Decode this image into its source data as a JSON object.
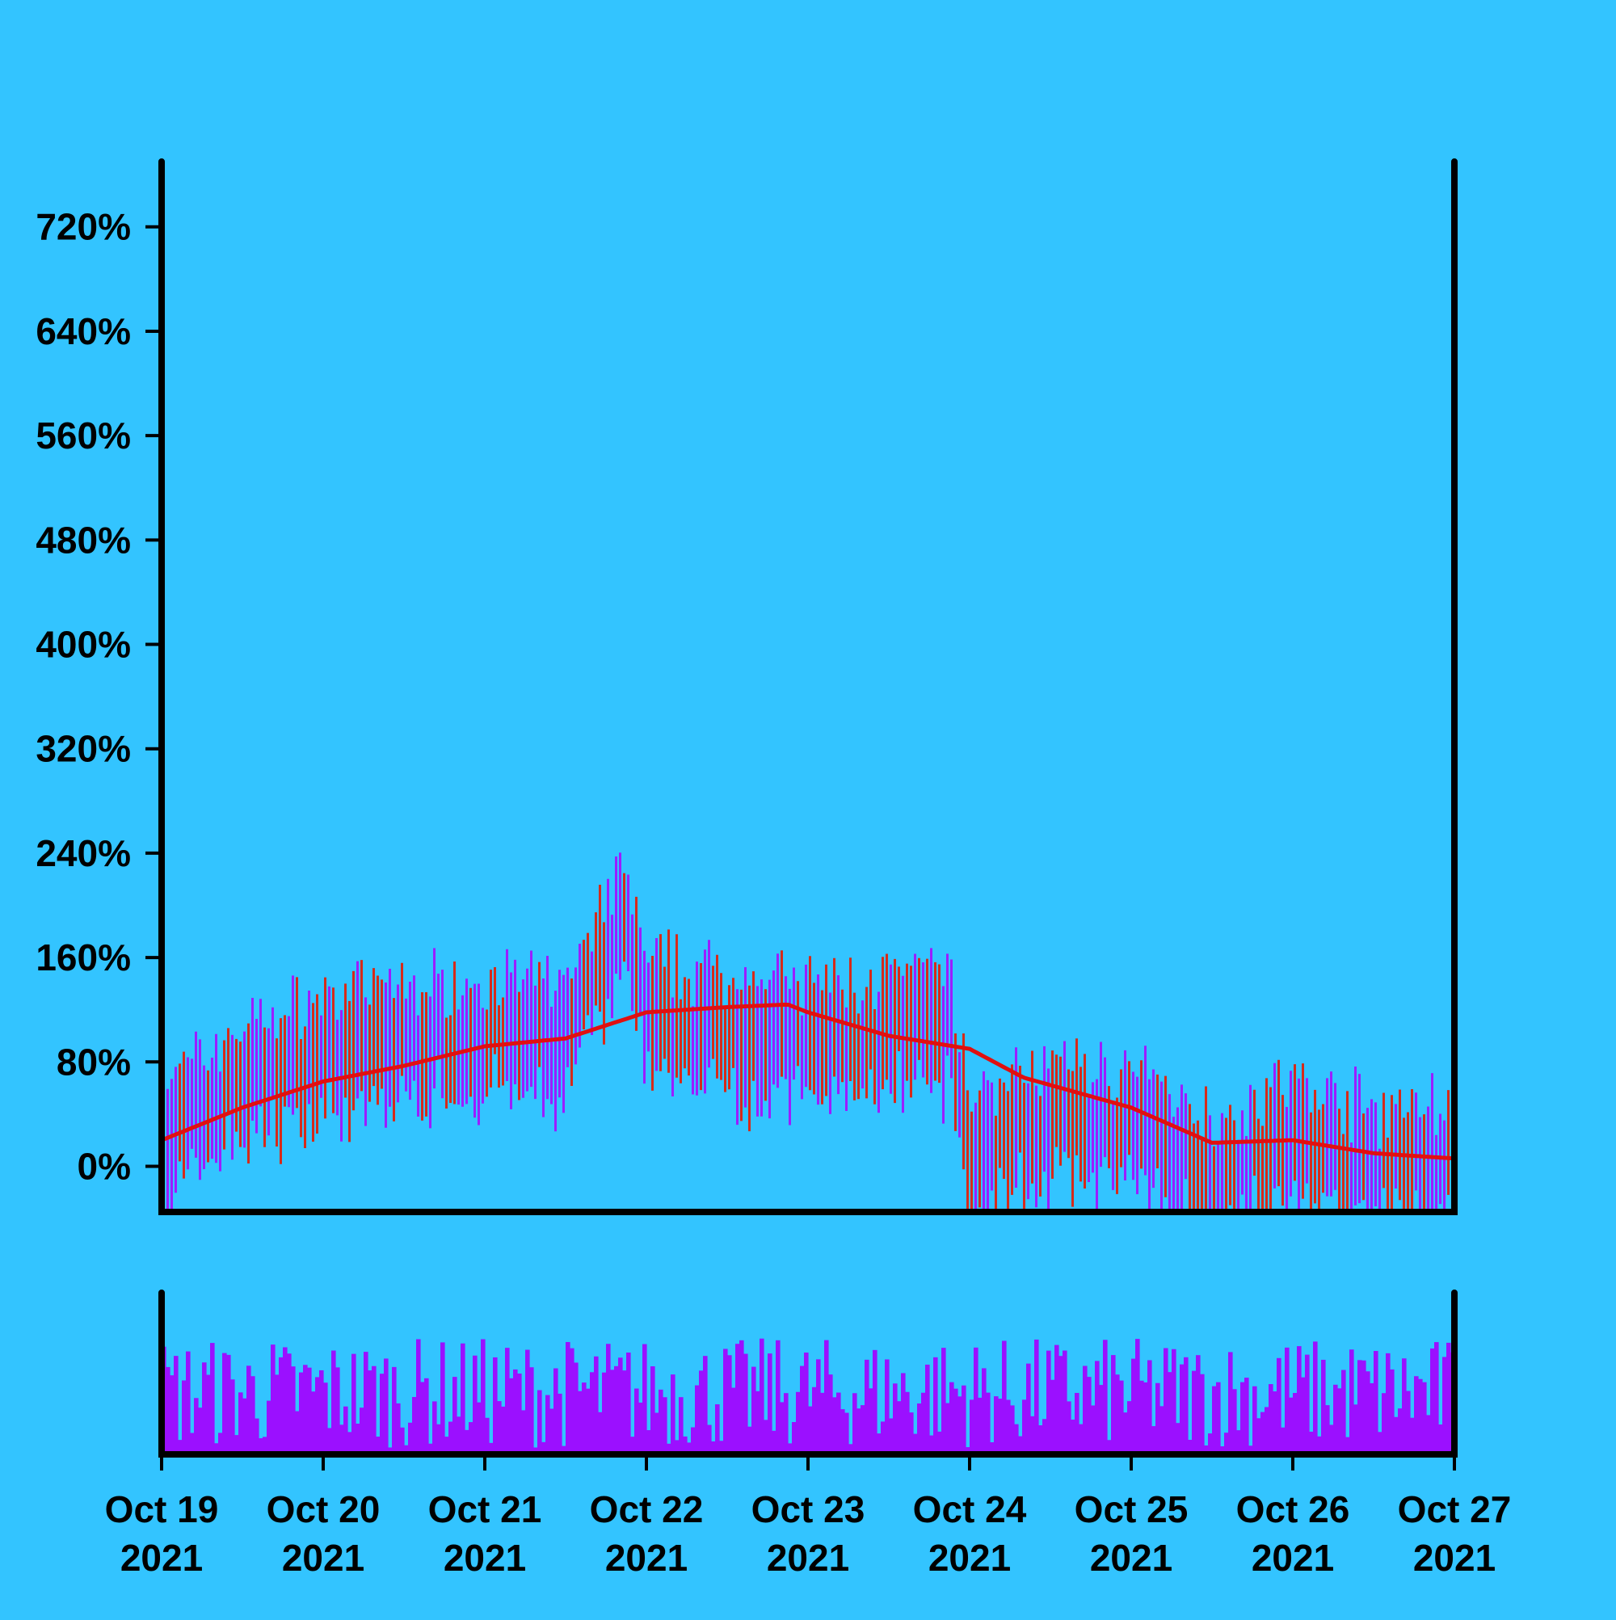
{
  "colors": {
    "background": "#33c4ff",
    "frame": "#000000",
    "up_bar": "#9b1dff",
    "down_bar": "#d62a1a",
    "moving_average": "#e01010",
    "volume": "#9b10ff"
  },
  "chart_data": {
    "type": "ohlc",
    "title": "",
    "xlabel": "",
    "ylabel": "",
    "ylim": [
      -35,
      770
    ],
    "y_ticks": [
      {
        "value": 0,
        "label": "0%"
      },
      {
        "value": 80,
        "label": "80%"
      },
      {
        "value": 160,
        "label": "160%"
      },
      {
        "value": 240,
        "label": "240%"
      },
      {
        "value": 320,
        "label": "320%"
      },
      {
        "value": 400,
        "label": "400%"
      },
      {
        "value": 480,
        "label": "480%"
      },
      {
        "value": 560,
        "label": "560%"
      },
      {
        "value": 640,
        "label": "640%"
      },
      {
        "value": 720,
        "label": "720%"
      }
    ],
    "x_range": [
      "2021-10-19",
      "2021-10-27"
    ],
    "x_ticks": [
      {
        "date": "2021-10-19",
        "line1": "Oct 19",
        "line2": "2021"
      },
      {
        "date": "2021-10-20",
        "line1": "Oct 20",
        "line2": "2021"
      },
      {
        "date": "2021-10-21",
        "line1": "Oct 21",
        "line2": "2021"
      },
      {
        "date": "2021-10-22",
        "line1": "Oct 22",
        "line2": "2021"
      },
      {
        "date": "2021-10-23",
        "line1": "Oct 23",
        "line2": "2021"
      },
      {
        "date": "2021-10-24",
        "line1": "Oct 24",
        "line2": "2021"
      },
      {
        "date": "2021-10-25",
        "line1": "Oct 25",
        "line2": "2021"
      },
      {
        "date": "2021-10-26",
        "line1": "Oct 26",
        "line2": "2021"
      },
      {
        "date": "2021-10-27",
        "line1": "Oct 27",
        "line2": "2021"
      }
    ],
    "bars_per_day": 40,
    "price_series": {
      "name": "",
      "anchor_dates": [
        "2021-10-19",
        "2021-10-19T12:00",
        "2021-10-20",
        "2021-10-20T12:00",
        "2021-10-21",
        "2021-10-21T12:00",
        "2021-10-21T21:00",
        "2021-10-22",
        "2021-10-22T12:00",
        "2021-10-23",
        "2021-10-23T12:00",
        "2021-10-23T21:00",
        "2021-10-24",
        "2021-10-24T12:00",
        "2021-10-25",
        "2021-10-25T12:00",
        "2021-10-26",
        "2021-10-26T12:00",
        "2021-10-27"
      ],
      "anchor_values": [
        18,
        65,
        85,
        95,
        100,
        96,
        190,
        110,
        105,
        95,
        100,
        105,
        10,
        35,
        30,
        -5,
        20,
        0,
        5
      ],
      "bar_range": 70
    },
    "moving_average": {
      "name": "",
      "anchor_dates": [
        "2021-10-19",
        "2021-10-19T12:00",
        "2021-10-20",
        "2021-10-20T12:00",
        "2021-10-21",
        "2021-10-21T12:00",
        "2021-10-22",
        "2021-10-22T12:00",
        "2021-10-22T21:00",
        "2021-10-23",
        "2021-10-23T12:00",
        "2021-10-24",
        "2021-10-24T08:00",
        "2021-10-25",
        "2021-10-25T12:00",
        "2021-10-26",
        "2021-10-26T12:00",
        "2021-10-27"
      ],
      "anchor_values": [
        20,
        45,
        65,
        77,
        92,
        98,
        118,
        122,
        124,
        118,
        100,
        90,
        68,
        45,
        18,
        20,
        10,
        6
      ]
    },
    "volume": {
      "name": "",
      "range": [
        0,
        100
      ],
      "mean_level": 45
    }
  }
}
